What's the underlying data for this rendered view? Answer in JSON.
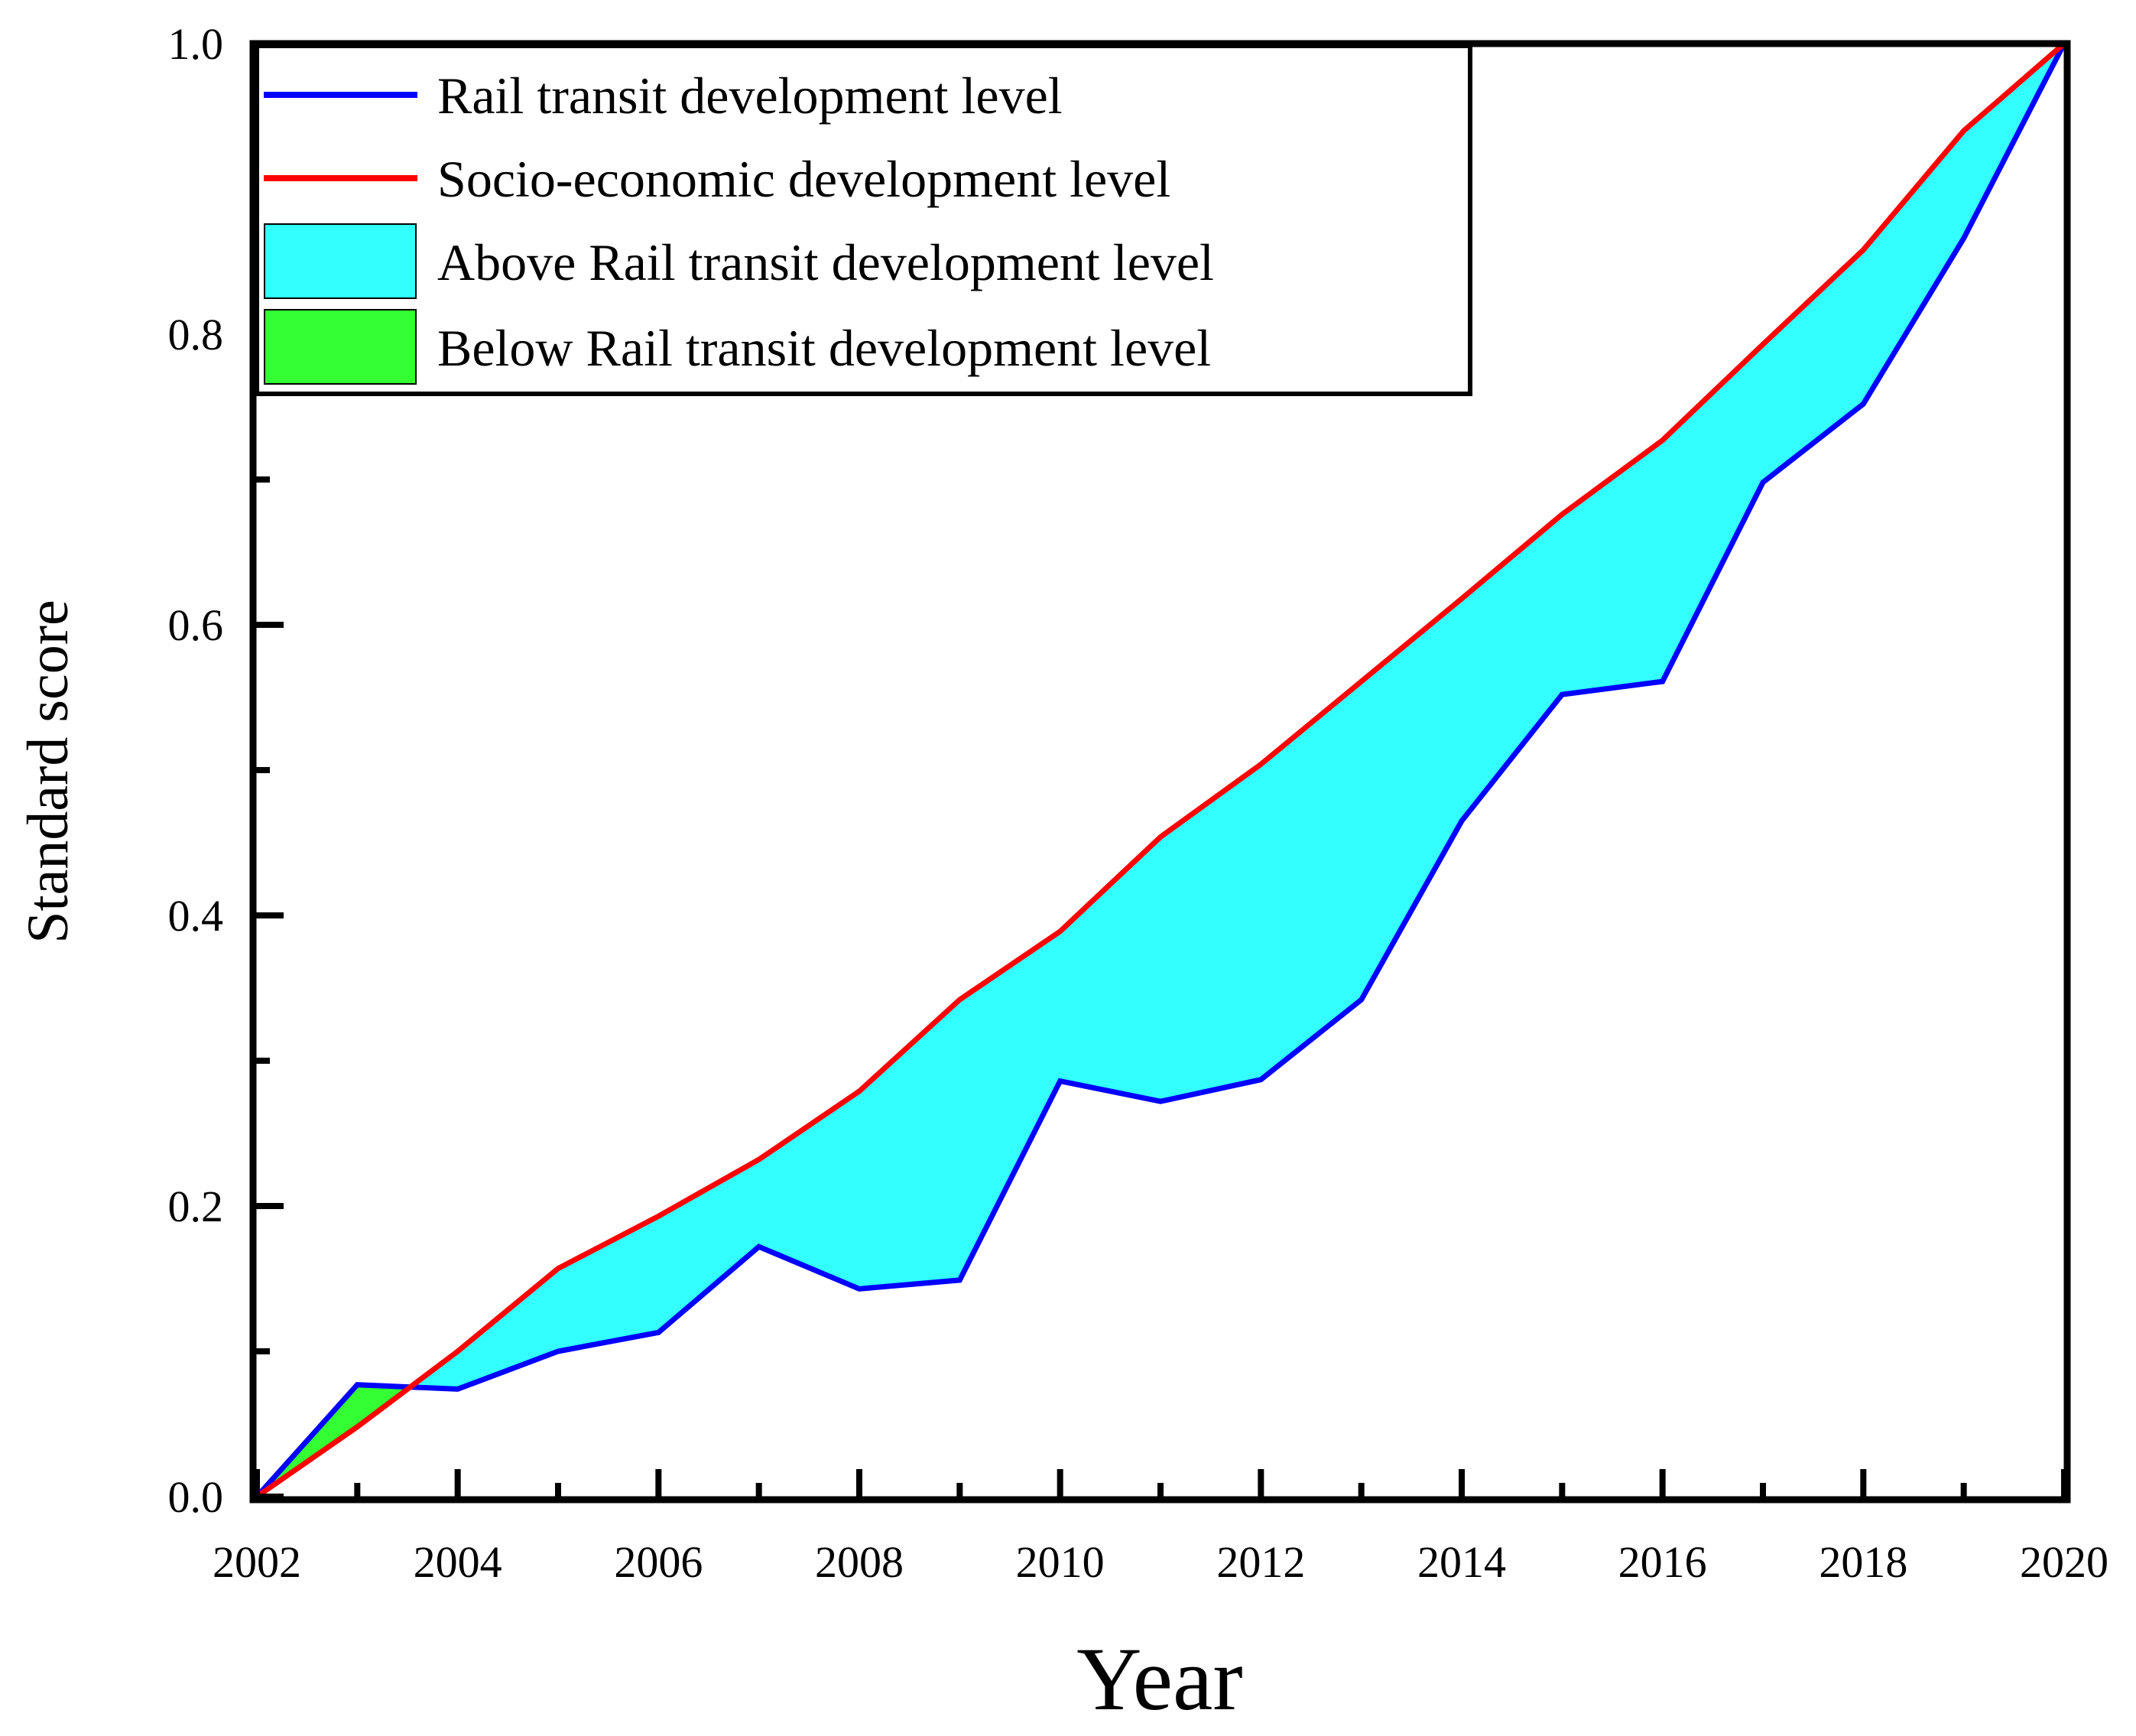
{
  "chart_data": {
    "type": "area",
    "title": "",
    "xlabel": "Year",
    "ylabel": "Standard score",
    "xlim": [
      2002,
      2020
    ],
    "ylim": [
      0.0,
      1.0
    ],
    "x_ticks": [
      "2002",
      "2004",
      "2006",
      "2008",
      "2010",
      "2012",
      "2014",
      "2016",
      "2018",
      "2020"
    ],
    "y_ticks": [
      "0.0",
      "0.2",
      "0.4",
      "0.6",
      "0.8",
      "1.0"
    ],
    "x": [
      2002,
      2003,
      2004,
      2005,
      2006,
      2007,
      2008,
      2009,
      2010,
      2011,
      2012,
      2013,
      2014,
      2015,
      2016,
      2017,
      2018,
      2019,
      2020
    ],
    "series": [
      {
        "name": "Rail transit development level",
        "color": "#0000ff",
        "values": [
          0.0,
          0.077,
          0.074,
          0.1,
          0.113,
          0.172,
          0.143,
          0.149,
          0.286,
          0.272,
          0.287,
          0.342,
          0.465,
          0.552,
          0.561,
          0.698,
          0.752,
          0.866,
          1.0
        ]
      },
      {
        "name": "Socio-economic development level",
        "color": "#ff0000",
        "values": [
          0.0,
          0.048,
          0.1,
          0.157,
          0.193,
          0.232,
          0.279,
          0.342,
          0.389,
          0.454,
          0.504,
          0.561,
          0.618,
          0.676,
          0.727,
          0.793,
          0.858,
          0.94,
          1.0
        ]
      }
    ],
    "fills": [
      {
        "name": "Above Rail transit development level",
        "color": "#33ffff"
      },
      {
        "name": "Below Rail transit development level",
        "color": "#33ff33"
      }
    ],
    "legend_position": "top-left",
    "grid": false
  }
}
